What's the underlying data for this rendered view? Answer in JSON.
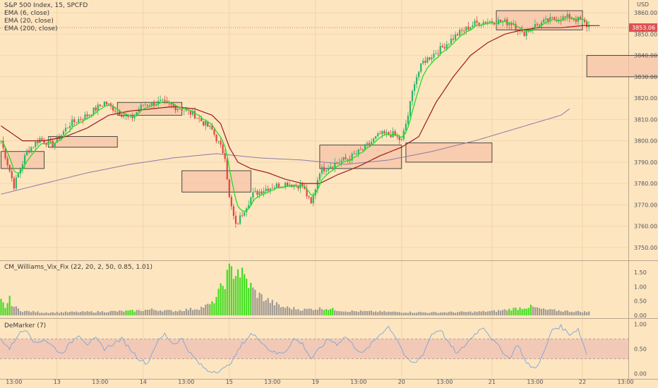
{
  "main_legend": {
    "symbol": "S&P 500 Index, 15, SPCFD",
    "ema6": "EMA (6, close)",
    "ema20": "EMA (20, close)",
    "ema200": "EMA (200, close)"
  },
  "currency": "USD",
  "last_price_label": "3853.06",
  "vix_legend": "CM_Williams_Vix_Fix (22, 20, 2, 50, 0.85, 1.01)",
  "demarker_legend": "DeMarker (7)",
  "colors": {
    "background": "#fde5c0",
    "up_candle": "#2fb36a",
    "down_candle": "#e04545",
    "ema6": "#22e022",
    "ema20": "#9b1b1b",
    "ema200": "#8b7ba6",
    "vix_high": "#44dd22",
    "vix_normal": "#a09a92",
    "demarker_line": "#7aa6d8",
    "demarker_band": "#f2c9b6",
    "box_fill": "#f5c3a8",
    "price_tag": "#e05050"
  },
  "chart_data": [
    {
      "type": "candlestick",
      "title": "S&P 500 Index, 15, SPCFD",
      "x_tick_labels": [
        "13:00",
        "13",
        "13:00",
        "14",
        "13:00",
        "15",
        "13:00",
        "19",
        "13:00",
        "20",
        "13:00",
        "21",
        "13:00",
        "22",
        "13:00"
      ],
      "y_ticks": [
        3750,
        3760,
        3770,
        3780,
        3790,
        3800,
        3810,
        3820,
        3830,
        3840,
        3850,
        3860
      ],
      "ylim": [
        3745,
        3865
      ],
      "last_price": 3853.06,
      "close_anchors": [
        [
          0,
          3800
        ],
        [
          6,
          3779
        ],
        [
          12,
          3795
        ],
        [
          18,
          3801
        ],
        [
          24,
          3798
        ],
        [
          32,
          3808
        ],
        [
          40,
          3812
        ],
        [
          48,
          3818
        ],
        [
          54,
          3814
        ],
        [
          60,
          3810
        ],
        [
          66,
          3817
        ],
        [
          74,
          3818
        ],
        [
          84,
          3815
        ],
        [
          90,
          3812
        ],
        [
          98,
          3805
        ],
        [
          102,
          3797
        ],
        [
          104,
          3793
        ],
        [
          106,
          3773
        ],
        [
          109,
          3760
        ],
        [
          113,
          3768
        ],
        [
          117,
          3775
        ],
        [
          124,
          3778
        ],
        [
          132,
          3780
        ],
        [
          140,
          3779
        ],
        [
          144,
          3770
        ],
        [
          148,
          3786
        ],
        [
          156,
          3790
        ],
        [
          162,
          3792
        ],
        [
          168,
          3796
        ],
        [
          176,
          3803
        ],
        [
          182,
          3803
        ],
        [
          186,
          3800
        ],
        [
          189,
          3812
        ],
        [
          192,
          3828
        ],
        [
          196,
          3837
        ],
        [
          204,
          3843
        ],
        [
          212,
          3850
        ],
        [
          220,
          3855
        ],
        [
          226,
          3856
        ],
        [
          232,
          3856
        ],
        [
          238,
          3855
        ],
        [
          242,
          3850
        ],
        [
          248,
          3854
        ],
        [
          256,
          3857
        ],
        [
          264,
          3858
        ],
        [
          270,
          3856
        ],
        [
          272,
          3854
        ]
      ],
      "ema20_anchors": [
        [
          0,
          3807
        ],
        [
          10,
          3800
        ],
        [
          20,
          3800
        ],
        [
          30,
          3802
        ],
        [
          40,
          3806
        ],
        [
          50,
          3812
        ],
        [
          60,
          3814
        ],
        [
          70,
          3815
        ],
        [
          80,
          3816
        ],
        [
          90,
          3815
        ],
        [
          98,
          3812
        ],
        [
          102,
          3808
        ],
        [
          106,
          3797
        ],
        [
          110,
          3790
        ],
        [
          116,
          3787
        ],
        [
          124,
          3785
        ],
        [
          132,
          3782
        ],
        [
          140,
          3780
        ],
        [
          148,
          3780
        ],
        [
          156,
          3784
        ],
        [
          166,
          3788
        ],
        [
          176,
          3793
        ],
        [
          186,
          3797
        ],
        [
          194,
          3802
        ],
        [
          202,
          3818
        ],
        [
          210,
          3830
        ],
        [
          218,
          3840
        ],
        [
          226,
          3846
        ],
        [
          234,
          3850
        ],
        [
          242,
          3852
        ],
        [
          250,
          3853
        ],
        [
          260,
          3853
        ],
        [
          270,
          3854
        ],
        [
          278,
          3854
        ]
      ],
      "ema200_anchors": [
        [
          0,
          3775
        ],
        [
          20,
          3780
        ],
        [
          40,
          3785
        ],
        [
          60,
          3789
        ],
        [
          80,
          3792
        ],
        [
          100,
          3794
        ],
        [
          120,
          3792
        ],
        [
          140,
          3791
        ],
        [
          160,
          3789
        ],
        [
          180,
          3791
        ],
        [
          200,
          3795
        ],
        [
          220,
          3800
        ],
        [
          240,
          3806
        ],
        [
          260,
          3812
        ],
        [
          264,
          3815
        ]
      ],
      "boxes": [
        {
          "x0": 0,
          "x1": 20,
          "y0": 3787,
          "y1": 3795
        },
        {
          "x0": 22,
          "x1": 54,
          "y0": 3797,
          "y1": 3802
        },
        {
          "x0": 54,
          "x1": 84,
          "y0": 3812,
          "y1": 3818
        },
        {
          "x0": 84,
          "x1": 116,
          "y0": 3776,
          "y1": 3786
        },
        {
          "x0": 148,
          "x1": 186,
          "y0": 3787,
          "y1": 3798
        },
        {
          "x0": 188,
          "x1": 228,
          "y0": 3790,
          "y1": 3799
        },
        {
          "x0": 230,
          "x1": 270,
          "y0": 3852,
          "y1": 3861
        },
        {
          "x0": 272,
          "x1": 310,
          "y0": 3830,
          "y1": 3840
        }
      ]
    },
    {
      "type": "bar",
      "title": "CM_Williams_Vix_Fix (22, 20, 2, 50, 0.85, 1.01)",
      "y_ticks": [
        0.0,
        0.5,
        1.0,
        1.5
      ],
      "ylim": [
        0,
        1.8
      ],
      "anchors": [
        [
          0,
          0.5
        ],
        [
          2,
          0.3
        ],
        [
          4,
          0.55
        ],
        [
          6,
          0.3
        ],
        [
          10,
          0.15
        ],
        [
          20,
          0.1
        ],
        [
          40,
          0.12
        ],
        [
          60,
          0.15
        ],
        [
          70,
          0.2
        ],
        [
          80,
          0.15
        ],
        [
          92,
          0.25
        ],
        [
          98,
          0.4
        ],
        [
          102,
          0.9
        ],
        [
          106,
          1.5
        ],
        [
          110,
          1.6
        ],
        [
          114,
          1.2
        ],
        [
          118,
          0.8
        ],
        [
          122,
          0.6
        ],
        [
          126,
          0.45
        ],
        [
          130,
          0.3
        ],
        [
          140,
          0.2
        ],
        [
          150,
          0.25
        ],
        [
          160,
          0.15
        ],
        [
          180,
          0.12
        ],
        [
          200,
          0.1
        ],
        [
          220,
          0.12
        ],
        [
          230,
          0.15
        ],
        [
          240,
          0.25
        ],
        [
          246,
          0.3
        ],
        [
          252,
          0.2
        ],
        [
          262,
          0.15
        ],
        [
          272,
          0.12
        ]
      ],
      "highlight_ranges": [
        [
          0,
          4
        ],
        [
          58,
          62
        ],
        [
          97,
          116
        ],
        [
          150,
          154
        ],
        [
          236,
          246
        ]
      ]
    },
    {
      "type": "line",
      "title": "DeMarker (7)",
      "y_ticks": [
        0.0,
        0.5,
        1.0
      ],
      "ylim": [
        -0.05,
        1.05
      ],
      "band": [
        0.3,
        0.7
      ],
      "anchors": [
        [
          0,
          0.7
        ],
        [
          4,
          0.5
        ],
        [
          8,
          0.8
        ],
        [
          12,
          0.9
        ],
        [
          16,
          0.6
        ],
        [
          20,
          0.7
        ],
        [
          24,
          0.55
        ],
        [
          28,
          0.4
        ],
        [
          32,
          0.6
        ],
        [
          36,
          0.8
        ],
        [
          40,
          0.6
        ],
        [
          44,
          0.7
        ],
        [
          48,
          0.5
        ],
        [
          52,
          0.6
        ],
        [
          56,
          0.7
        ],
        [
          60,
          0.5
        ],
        [
          64,
          0.3
        ],
        [
          68,
          0.2
        ],
        [
          72,
          0.6
        ],
        [
          76,
          0.8
        ],
        [
          80,
          0.6
        ],
        [
          84,
          0.7
        ],
        [
          88,
          0.4
        ],
        [
          92,
          0.2
        ],
        [
          96,
          0.05
        ],
        [
          100,
          0.05
        ],
        [
          104,
          0.1
        ],
        [
          108,
          0.3
        ],
        [
          112,
          0.6
        ],
        [
          116,
          0.8
        ],
        [
          120,
          0.7
        ],
        [
          124,
          0.5
        ],
        [
          128,
          0.4
        ],
        [
          132,
          0.45
        ],
        [
          136,
          0.7
        ],
        [
          140,
          0.6
        ],
        [
          144,
          0.3
        ],
        [
          148,
          0.5
        ],
        [
          152,
          0.7
        ],
        [
          156,
          0.6
        ],
        [
          160,
          0.75
        ],
        [
          164,
          0.55
        ],
        [
          168,
          0.4
        ],
        [
          172,
          0.6
        ],
        [
          176,
          0.8
        ],
        [
          180,
          0.95
        ],
        [
          184,
          0.7
        ],
        [
          188,
          0.3
        ],
        [
          192,
          0.2
        ],
        [
          196,
          0.4
        ],
        [
          200,
          0.8
        ],
        [
          204,
          0.9
        ],
        [
          208,
          0.6
        ],
        [
          212,
          0.4
        ],
        [
          216,
          0.6
        ],
        [
          220,
          0.8
        ],
        [
          224,
          0.95
        ],
        [
          228,
          0.7
        ],
        [
          232,
          0.5
        ],
        [
          236,
          0.3
        ],
        [
          240,
          0.6
        ],
        [
          244,
          0.2
        ],
        [
          248,
          0.1
        ],
        [
          252,
          0.4
        ],
        [
          256,
          0.9
        ],
        [
          260,
          0.95
        ],
        [
          264,
          0.8
        ],
        [
          268,
          0.9
        ],
        [
          272,
          0.4
        ]
      ]
    }
  ]
}
